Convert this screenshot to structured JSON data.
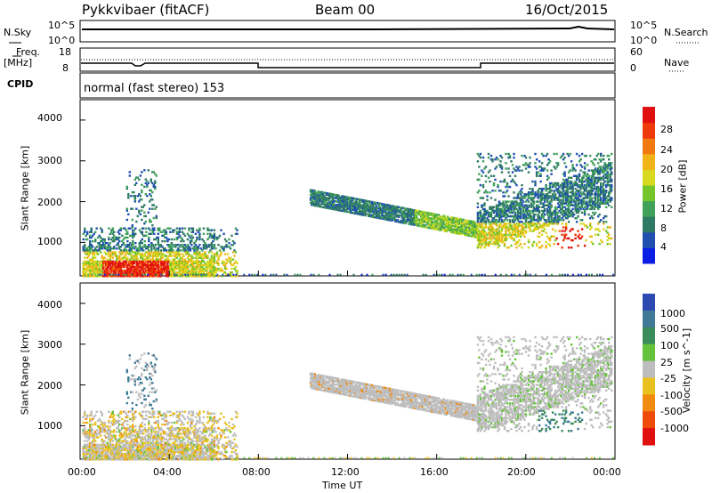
{
  "header": {
    "station": "Pykkvibaer (fitACF)",
    "beam": "Beam 00",
    "date": "16/Oct/2015"
  },
  "noise_panel": {
    "left_label": "N.Sky",
    "right_label": "N.Search",
    "left_ticks": [
      "10^5",
      "10^0"
    ],
    "right_ticks": [
      "10^5",
      "10^0"
    ]
  },
  "freq_panel": {
    "left_label_1": "Freq.",
    "left_label_2": "[MHz]",
    "right_label": "Nave",
    "left_ticks": [
      "18",
      "8"
    ],
    "right_ticks": [
      "60",
      "0"
    ]
  },
  "cpid": {
    "label": "CPID",
    "mode": "normal (fast stereo) 153"
  },
  "time_axis": {
    "label": "Time UT",
    "ticks": [
      "00:00",
      "04:00",
      "08:00",
      "12:00",
      "16:00",
      "20:00",
      "00:00"
    ]
  },
  "range_axis": {
    "label": "Slant Range [km]",
    "ticks": [
      "1000",
      "2000",
      "3000",
      "4000"
    ]
  },
  "chart_data": [
    {
      "type": "heatmap",
      "quantity": "Power",
      "unit_label": "Power [dB]",
      "colorbar_ticks": [
        "4",
        "8",
        "12",
        "16",
        "20",
        "24",
        "28"
      ],
      "colors": [
        "#0a1ee6",
        "#1f50b0",
        "#2f7a64",
        "#3fa15a",
        "#74c42c",
        "#d8d820",
        "#f0b418",
        "#f07a10",
        "#ee3a0a",
        "#e01010"
      ],
      "xlabel": "Time UT",
      "ylabel": "Slant Range [km]",
      "x_range_hours": [
        0,
        24
      ],
      "ylim": [
        180,
        4500
      ],
      "regions": [
        {
          "t": [
            0,
            7.0
          ],
          "r": [
            180,
            1400
          ],
          "peak": "near-range, strongest 01:00-04:00 below 600 km"
        },
        {
          "t": [
            2.0,
            3.5
          ],
          "r": [
            1400,
            2800
          ],
          "note": "sparse columns"
        },
        {
          "t": [
            10.3,
            17.8
          ],
          "r": [
            1300,
            2300
          ],
          "note": "band descending toward 1400 km"
        },
        {
          "t": [
            17.8,
            23.8
          ],
          "r": [
            900,
            3200
          ],
          "peak": "around 21:30-22:30 near 1100 km"
        }
      ]
    },
    {
      "type": "heatmap",
      "quantity": "Velocity",
      "unit_label": "Velocity [m s^-1]",
      "colorbar_ticks": [
        "1000",
        "500",
        "100",
        "25",
        "-25",
        "-100",
        "-500",
        "-1000"
      ],
      "colors": [
        "#2c4ab0",
        "#3f7a96",
        "#3a8d5a",
        "#66c23c",
        "#bdbdbd",
        "#e8c020",
        "#f08a10",
        "#ee4a0a",
        "#e01010"
      ],
      "xlabel": "Time UT",
      "ylabel": "Slant Range [km]",
      "x_range_hours": [
        0,
        24
      ],
      "ylim": [
        180,
        4500
      ],
      "regions": [
        {
          "t": [
            0,
            7.0
          ],
          "r": [
            180,
            1400
          ],
          "note": "mostly grey/orange, negative velocities"
        },
        {
          "t": [
            10.3,
            17.8
          ],
          "r": [
            1300,
            2300
          ],
          "note": "grey ground scatter band"
        },
        {
          "t": [
            17.8,
            23.8
          ],
          "r": [
            900,
            3200
          ],
          "note": "grey band with green/blue patches near 21:00"
        }
      ]
    }
  ]
}
